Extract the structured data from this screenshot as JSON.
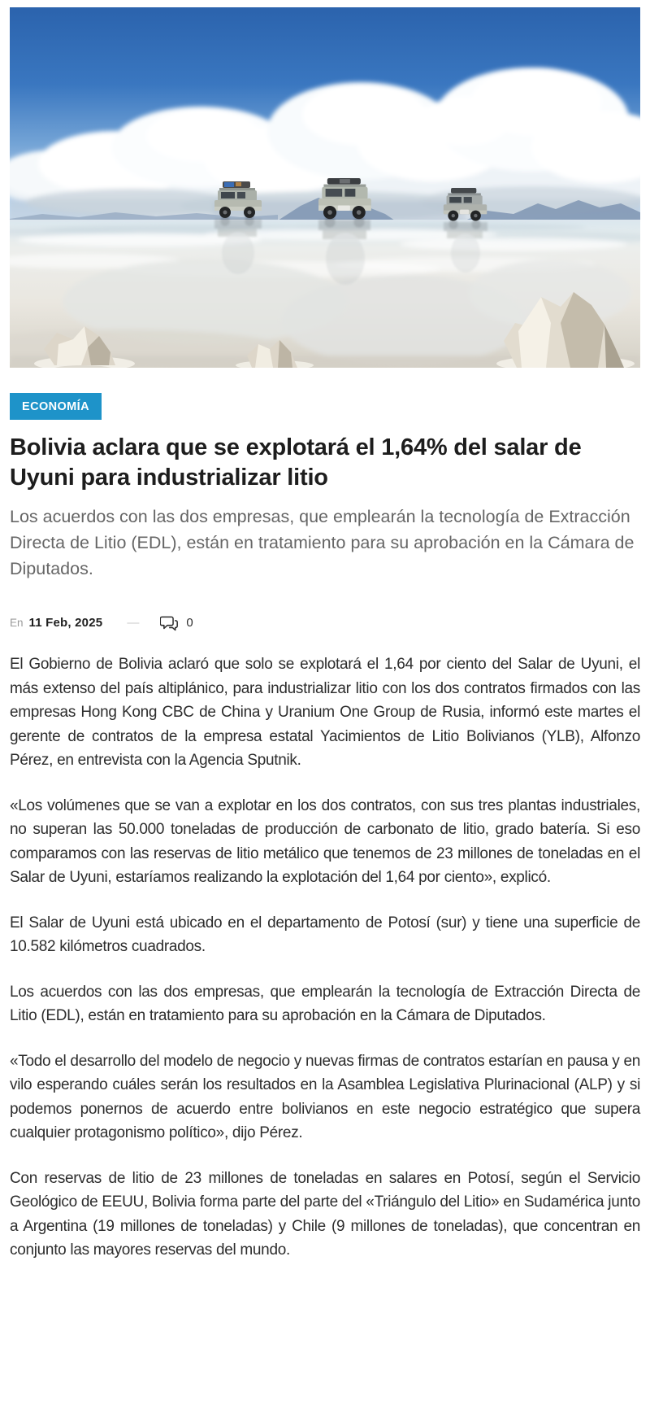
{
  "category": {
    "label": "ECONOMÍA",
    "badge_color": "#1e93c9"
  },
  "article": {
    "headline": "Bolivia aclara que se explotará el 1,64% del salar de Uyuni para industrializar litio",
    "subtitle": "Los acuerdos con las dos empresas, que emplearán la tecnología de Extracción Directa de Litio (EDL), están en tratamiento para su aprobación en la Cámara de Diputados.",
    "paragraphs": [
      "El Gobierno de Bolivia aclaró que solo se explotará el 1,64 por ciento del Salar de Uyuni, el más extenso del país altiplánico, para industrializar litio con los dos contratos firmados con las empresas Hong Kong CBC de China y Uranium One Group de Rusia, informó este martes el gerente de contratos de la empresa estatal Yacimientos de Litio Bolivianos (YLB), Alfonzo Pérez, en entrevista con la Agencia Sputnik.",
      "«Los volúmenes que se van a explotar en los dos contratos, con sus tres plantas industriales, no superan las 50.000 toneladas de producción de carbonato de litio, grado batería. Si eso comparamos con las reservas de litio metálico que tenemos de 23 millones de toneladas en el Salar de Uyuni, estaríamos realizando la explotación del 1,64 por ciento», explicó.",
      "El Salar de Uyuni está ubicado en el departamento de Potosí (sur) y tiene una superficie de 10.582 kilómetros cuadrados.",
      "Los acuerdos con las dos empresas, que emplearán la tecnología de Extracción Directa de Litio (EDL), están en tratamiento para su aprobación en la Cámara de Diputados.",
      "«Todo el desarrollo del modelo de negocio y nuevas firmas de contratos estarían en pausa y en vilo esperando cuáles serán los resultados en la Asamblea Legislativa Plurinacional (ALP) y si podemos ponernos de acuerdo entre bolivianos en este negocio estratégico que supera cualquier protagonismo político», dijo Pérez.",
      "Con reservas de litio de 23 millones de toneladas en salares en Potosí, según el Servicio Geológico de EEUU, Bolivia forma parte del parte del «Triángulo del Litio» en Sudamérica junto a Argentina (19 millones de toneladas) y Chile (9 millones de toneladas), que concentran en conjunto las mayores reservas del mundo."
    ]
  },
  "meta": {
    "prefix": "En",
    "date": "11 Feb, 2025",
    "separator": "—",
    "comments_icon": "speech-bubbles-icon",
    "comments_count": "0"
  },
  "hero_image": {
    "description": "Tres vehículos 4x4 cruzando el Salar de Uyuni inundado, con nubes cúmulo reflejadas en la superficie y rocas de sal en primer plano"
  }
}
